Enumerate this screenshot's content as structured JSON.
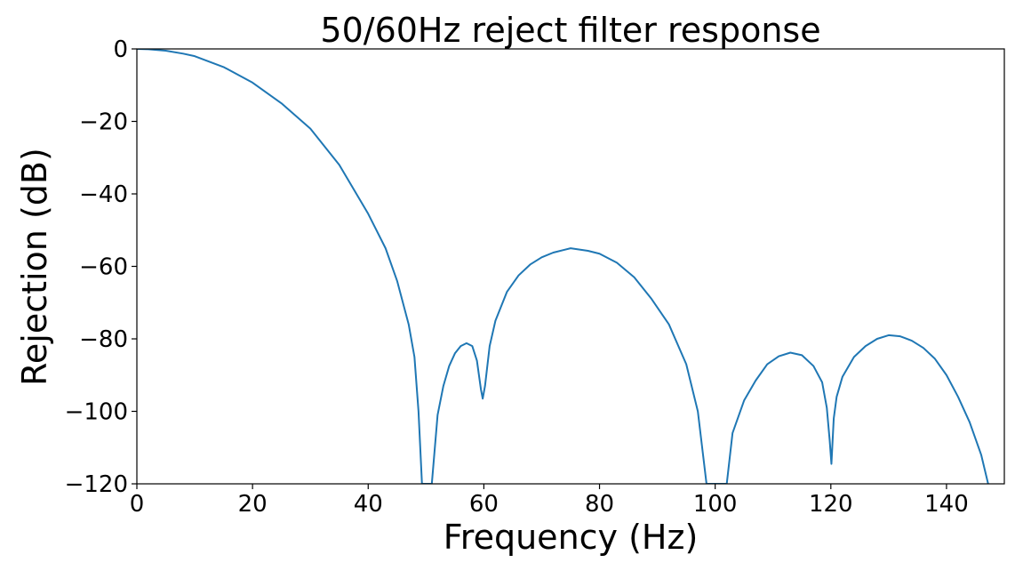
{
  "chart_data": {
    "type": "line",
    "title": "50/60Hz reject filter response",
    "xlabel": "Frequency (Hz)",
    "ylabel": "Rejection (dB)",
    "xlim": [
      0,
      150
    ],
    "ylim": [
      -120,
      0
    ],
    "x_ticks": [
      0,
      20,
      40,
      60,
      80,
      100,
      120,
      140
    ],
    "y_ticks": [
      0,
      -20,
      -40,
      -60,
      -80,
      -100,
      -120
    ],
    "x_tick_labels": [
      "0",
      "20",
      "40",
      "60",
      "80",
      "100",
      "120",
      "140"
    ],
    "y_tick_labels": [
      "0",
      "−20",
      "−40",
      "−60",
      "−80",
      "−100",
      "−120"
    ],
    "grid": false,
    "legend": "none",
    "series": [
      {
        "color": "#1f77b4",
        "x": [
          0,
          2,
          5,
          8,
          10,
          15,
          20,
          25,
          30,
          35,
          40,
          43,
          45,
          47,
          48,
          48.7,
          49.3,
          51,
          52,
          53,
          54,
          55,
          56,
          57,
          58,
          58.8,
          59.5,
          59.8,
          60.2,
          61,
          62,
          64,
          66,
          68,
          70,
          72,
          75,
          78,
          80,
          83,
          86,
          89,
          92,
          95,
          97,
          98.5,
          102,
          103,
          105,
          107,
          109,
          111,
          113,
          115,
          117,
          118.5,
          119.3,
          119.8,
          120.1,
          120.5,
          121,
          122,
          124,
          126,
          128,
          130,
          132,
          134,
          136,
          138,
          140,
          142,
          144,
          146,
          147.2
        ],
        "y": [
          0,
          -0.1,
          -0.5,
          -1.3,
          -2.0,
          -5.0,
          -9.3,
          -15.0,
          -22.0,
          -32.0,
          -45.5,
          -55.0,
          -64.0,
          -76.0,
          -85.0,
          -100.0,
          -120.0,
          -120.0,
          -101.0,
          -93.0,
          -87.5,
          -84.0,
          -82.0,
          -81.2,
          -82.0,
          -86.0,
          -94.0,
          -96.5,
          -93.0,
          -82.0,
          -75.0,
          -67.0,
          -62.5,
          -59.5,
          -57.5,
          -56.2,
          -55.0,
          -55.7,
          -56.5,
          -59.0,
          -63.0,
          -69.0,
          -76.0,
          -87.0,
          -100.0,
          -120.0,
          -120.0,
          -106.0,
          -97.0,
          -91.5,
          -87.0,
          -84.8,
          -83.8,
          -84.5,
          -87.5,
          -92.0,
          -99.0,
          -108.0,
          -114.5,
          -102.0,
          -96.0,
          -90.5,
          -85.0,
          -82.0,
          -80.0,
          -79.0,
          -79.3,
          -80.5,
          -82.5,
          -85.5,
          -90.0,
          -96.0,
          -103.0,
          -112.0,
          -120.0
        ]
      }
    ]
  }
}
